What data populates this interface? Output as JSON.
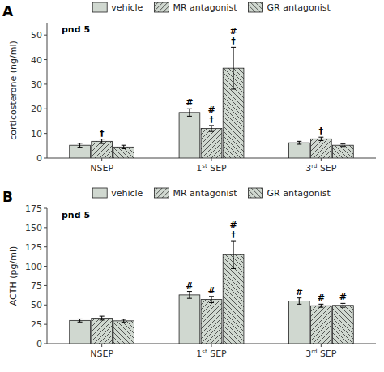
{
  "chart_data": [
    {
      "type": "bar",
      "title": "A",
      "subtitle": "pnd 5",
      "ylabel": "corticosterone (ng/ml)",
      "categories": [
        "NSEP",
        "1st SEP",
        "3rd SEP"
      ],
      "series": [
        {
          "name": "vehicle",
          "color": "#d0d8d0",
          "values": [
            5.2,
            18.5,
            6.2
          ],
          "errors": [
            0.8,
            1.5,
            0.6
          ],
          "annotations": [
            null,
            [
              "#"
            ],
            null
          ]
        },
        {
          "name": "MR antagonist",
          "color": "#d0d8d0",
          "values": [
            6.8,
            12.0,
            7.8
          ],
          "errors": [
            0.9,
            1.2,
            0.7
          ],
          "annotations": [
            [
              "†"
            ],
            [
              "†",
              "#"
            ],
            [
              "†"
            ]
          ]
        },
        {
          "name": "GR antagonist",
          "color": "#d0d8d0",
          "values": [
            4.5,
            36.5,
            5.2
          ],
          "errors": [
            0.7,
            8.5,
            0.5
          ],
          "annotations": [
            null,
            [
              "†",
              "#"
            ],
            null
          ]
        }
      ],
      "ylim": [
        0,
        55
      ],
      "yticks": [
        0,
        10,
        20,
        30,
        40,
        50
      ],
      "grid": false,
      "legend": "top"
    },
    {
      "type": "bar",
      "title": "B",
      "subtitle": "pnd 5",
      "ylabel": "ACTH (pg/ml)",
      "categories": [
        "NSEP",
        "1st SEP",
        "3rd SEP"
      ],
      "series": [
        {
          "name": "vehicle",
          "color": "#d0d8d0",
          "values": [
            30.0,
            63.0,
            55.0
          ],
          "errors": [
            2.0,
            4.5,
            4.0
          ],
          "annotations": [
            null,
            [
              "#"
            ],
            [
              "#"
            ]
          ]
        },
        {
          "name": "MR antagonist",
          "color": "#d0d8d0",
          "values": [
            33.0,
            57.0,
            49.0
          ],
          "errors": [
            2.5,
            4.0,
            2.0
          ],
          "annotations": [
            null,
            [
              "#"
            ],
            [
              "#"
            ]
          ]
        },
        {
          "name": "GR antagonist",
          "color": "#d0d8d0",
          "values": [
            29.5,
            115.0,
            49.5
          ],
          "errors": [
            2.0,
            18.0,
            2.5
          ],
          "annotations": [
            null,
            [
              "†",
              "#"
            ],
            [
              "#"
            ]
          ]
        }
      ],
      "ylim": [
        0,
        175
      ],
      "yticks": [
        0,
        25,
        50,
        75,
        100,
        125,
        150,
        175
      ],
      "grid": false,
      "legend": "top"
    }
  ]
}
